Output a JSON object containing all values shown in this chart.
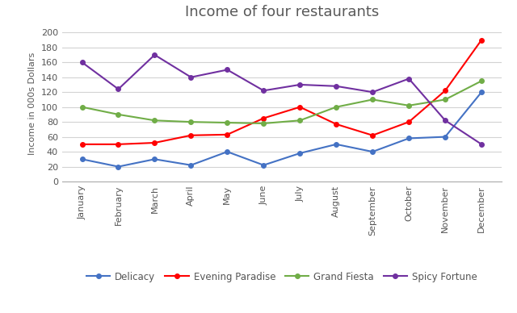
{
  "title": "Income of four restaurants",
  "ylabel": "Income in 000s Dollars",
  "months": [
    "January",
    "February",
    "March",
    "April",
    "May",
    "June",
    "July",
    "August",
    "September",
    "October",
    "November",
    "December"
  ],
  "series": {
    "Delicacy": {
      "values": [
        30,
        20,
        30,
        22,
        40,
        22,
        38,
        50,
        40,
        58,
        60,
        120
      ],
      "color": "#4472C4",
      "marker": "o"
    },
    "Evening Paradise": {
      "values": [
        50,
        50,
        52,
        62,
        63,
        85,
        100,
        77,
        62,
        80,
        122,
        190
      ],
      "color": "#FF0000",
      "marker": "o"
    },
    "Grand Fiesta": {
      "values": [
        100,
        90,
        82,
        80,
        79,
        78,
        82,
        100,
        110,
        102,
        110,
        135
      ],
      "color": "#70AD47",
      "marker": "o"
    },
    "Spicy Fortune": {
      "values": [
        160,
        124,
        170,
        140,
        150,
        122,
        130,
        128,
        120,
        138,
        82,
        50
      ],
      "color": "#7030A0",
      "marker": "o"
    }
  },
  "ylim": [
    0,
    210
  ],
  "yticks": [
    0,
    20,
    40,
    60,
    80,
    100,
    120,
    140,
    160,
    180,
    200
  ],
  "legend_order": [
    "Delicacy",
    "Evening Paradise",
    "Grand Fiesta",
    "Spicy Fortune"
  ],
  "background_color": "#ffffff",
  "grid_color": "#d3d3d3",
  "title_fontsize": 13,
  "title_color": "#595959",
  "label_fontsize": 8,
  "tick_fontsize": 8,
  "legend_fontsize": 8.5
}
